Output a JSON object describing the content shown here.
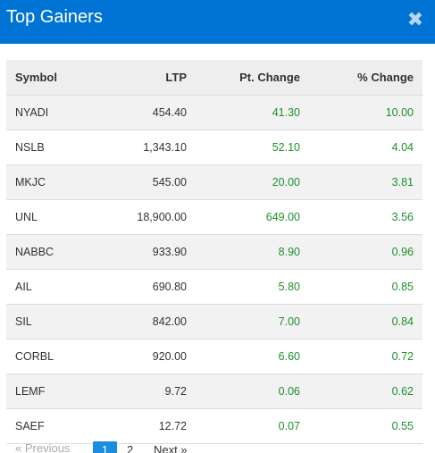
{
  "header": {
    "title": "Top Gainers",
    "close_glyph": "✖"
  },
  "table": {
    "columns": [
      "Symbol",
      "LTP",
      "Pt. Change",
      "% Change"
    ],
    "rows": [
      {
        "symbol": "NYADI",
        "ltp": "454.40",
        "pt_change": "41.30",
        "pct_change": "10.00"
      },
      {
        "symbol": "NSLB",
        "ltp": "1,343.10",
        "pt_change": "52.10",
        "pct_change": "4.04"
      },
      {
        "symbol": "MKJC",
        "ltp": "545.00",
        "pt_change": "20.00",
        "pct_change": "3.81"
      },
      {
        "symbol": "UNL",
        "ltp": "18,900.00",
        "pt_change": "649.00",
        "pct_change": "3.56"
      },
      {
        "symbol": "NABBC",
        "ltp": "933.90",
        "pt_change": "8.90",
        "pct_change": "0.96"
      },
      {
        "symbol": "AIL",
        "ltp": "690.80",
        "pt_change": "5.80",
        "pct_change": "0.85"
      },
      {
        "symbol": "SIL",
        "ltp": "842.00",
        "pt_change": "7.00",
        "pct_change": "0.84"
      },
      {
        "symbol": "CORBL",
        "ltp": "920.00",
        "pt_change": "6.60",
        "pct_change": "0.72"
      },
      {
        "symbol": "LEMF",
        "ltp": "9.72",
        "pt_change": "0.06",
        "pct_change": "0.62"
      },
      {
        "symbol": "SAEF",
        "ltp": "12.72",
        "pt_change": "0.07",
        "pct_change": "0.55"
      }
    ]
  },
  "pagination": {
    "previous_label": "« Previous",
    "pages": [
      "1",
      "2"
    ],
    "current_page": "1",
    "next_label": "Next »"
  },
  "colors": {
    "header_bg": "#0074d4",
    "gain_text": "#1f8f2c",
    "active_page_bg": "#1a8de0"
  }
}
